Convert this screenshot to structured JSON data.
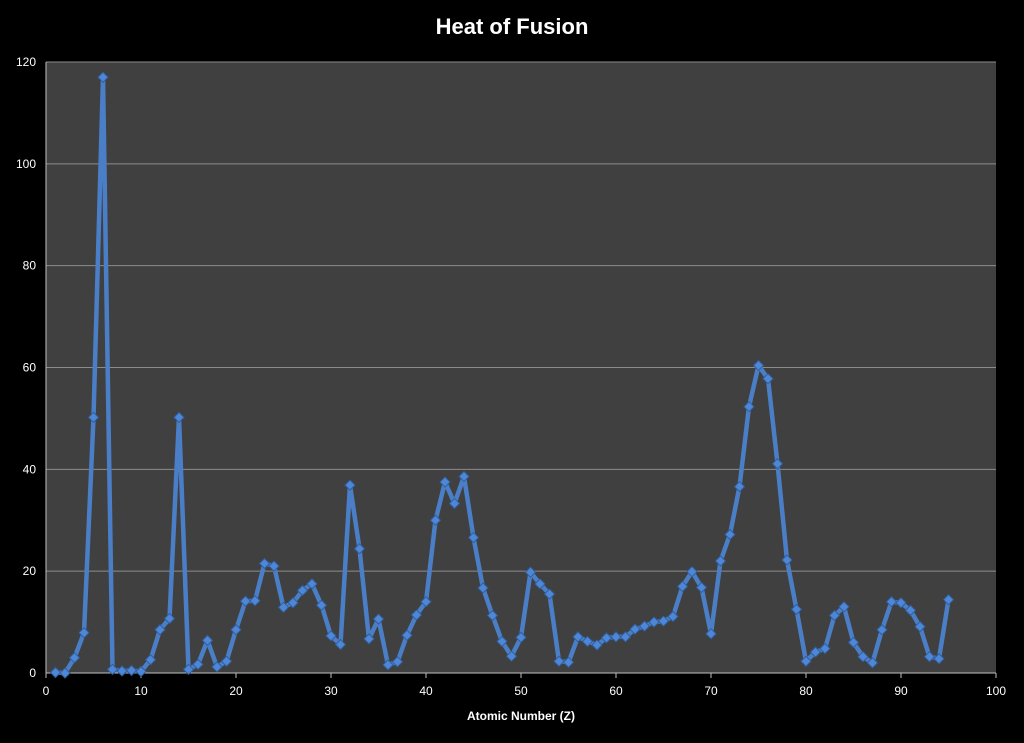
{
  "chart_data": {
    "type": "line",
    "title": "Heat of Fusion",
    "xlabel": "Atomic Number (Z)",
    "ylabel": "",
    "xlim": [
      0,
      100
    ],
    "ylim": [
      0,
      120
    ],
    "xticks": [
      0,
      10,
      20,
      30,
      40,
      50,
      60,
      70,
      80,
      90,
      100
    ],
    "yticks": [
      0,
      20,
      40,
      60,
      80,
      100,
      120
    ],
    "grid": true,
    "legend": "none",
    "colors": {
      "background": "#000000",
      "plot_area": "#404040",
      "gridline": "#8c8c8c",
      "series": "#4a7fc8",
      "marker": "#4f86d6",
      "text": "#ffffff"
    },
    "series": [
      {
        "marker": "diamond",
        "x": [
          1,
          2,
          3,
          4,
          5,
          6,
          7,
          8,
          9,
          10,
          11,
          12,
          13,
          14,
          15,
          16,
          17,
          18,
          19,
          20,
          21,
          22,
          23,
          24,
          25,
          26,
          27,
          28,
          29,
          30,
          31,
          32,
          33,
          34,
          35,
          36,
          37,
          38,
          39,
          40,
          41,
          42,
          43,
          44,
          45,
          46,
          47,
          48,
          49,
          50,
          51,
          52,
          53,
          54,
          55,
          56,
          57,
          58,
          59,
          60,
          61,
          62,
          63,
          64,
          65,
          66,
          67,
          68,
          69,
          70,
          71,
          72,
          73,
          74,
          75,
          76,
          77,
          78,
          79,
          80,
          81,
          82,
          83,
          84,
          85,
          86,
          87,
          88,
          89,
          90,
          91,
          92,
          93,
          94,
          95
        ],
        "values": [
          0.1,
          0.0,
          3.0,
          7.9,
          50.2,
          117.0,
          0.7,
          0.4,
          0.5,
          0.3,
          2.6,
          8.5,
          10.7,
          50.2,
          0.7,
          1.7,
          6.4,
          1.2,
          2.3,
          8.5,
          14.1,
          14.2,
          21.5,
          21.0,
          12.9,
          13.8,
          16.2,
          17.5,
          13.3,
          7.3,
          5.6,
          36.9,
          24.4,
          6.7,
          10.6,
          1.6,
          2.2,
          7.4,
          11.4,
          14.0,
          30.0,
          37.5,
          33.3,
          38.6,
          26.6,
          16.7,
          11.3,
          6.2,
          3.3,
          7.0,
          19.8,
          17.5,
          15.5,
          2.3,
          2.1,
          7.1,
          6.2,
          5.5,
          6.9,
          7.1,
          7.1,
          8.6,
          9.2,
          10.0,
          10.2,
          11.1,
          17.0,
          19.9,
          16.8,
          7.7,
          22.0,
          27.2,
          36.6,
          52.3,
          60.4,
          57.8,
          41.1,
          22.2,
          12.5,
          2.3,
          4.1,
          4.8,
          11.3,
          13.0,
          6.0,
          3.2,
          2.0,
          8.5,
          14.0,
          13.8,
          12.3,
          9.1,
          3.2,
          2.8,
          14.4
        ]
      }
    ]
  }
}
